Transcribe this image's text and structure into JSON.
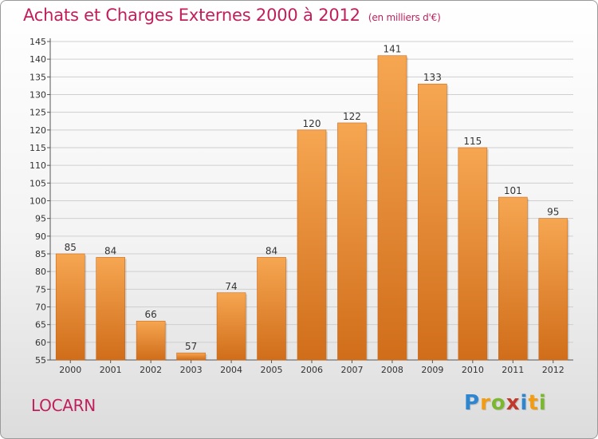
{
  "title": "Achats et Charges Externes 2000 à 2012",
  "unit": "(en milliers d'€)",
  "commune": "LOCARN",
  "logo": {
    "letters": [
      "P",
      "r",
      "o",
      "x",
      "i",
      "t",
      "i"
    ],
    "colors": [
      "#2e86d1",
      "#f39c12",
      "#7cb82f",
      "#c0392b",
      "#2e86d1",
      "#f39c12",
      "#7cb82f"
    ]
  },
  "chart_data": {
    "type": "bar",
    "title": "Achats et Charges Externes 2000 à 2012",
    "subtitle": "(en milliers d'€)",
    "categories": [
      "2000",
      "2001",
      "2002",
      "2003",
      "2004",
      "2005",
      "2006",
      "2007",
      "2008",
      "2009",
      "2010",
      "2011",
      "2012"
    ],
    "values": [
      85,
      84,
      66,
      57,
      74,
      84,
      120,
      122,
      141,
      133,
      115,
      101,
      95
    ],
    "ylim": [
      55,
      145
    ],
    "yticks": [
      55,
      60,
      65,
      70,
      75,
      80,
      85,
      90,
      95,
      100,
      105,
      110,
      115,
      120,
      125,
      130,
      135,
      140,
      145
    ],
    "grid": true,
    "bar_color": "#e98a35"
  }
}
